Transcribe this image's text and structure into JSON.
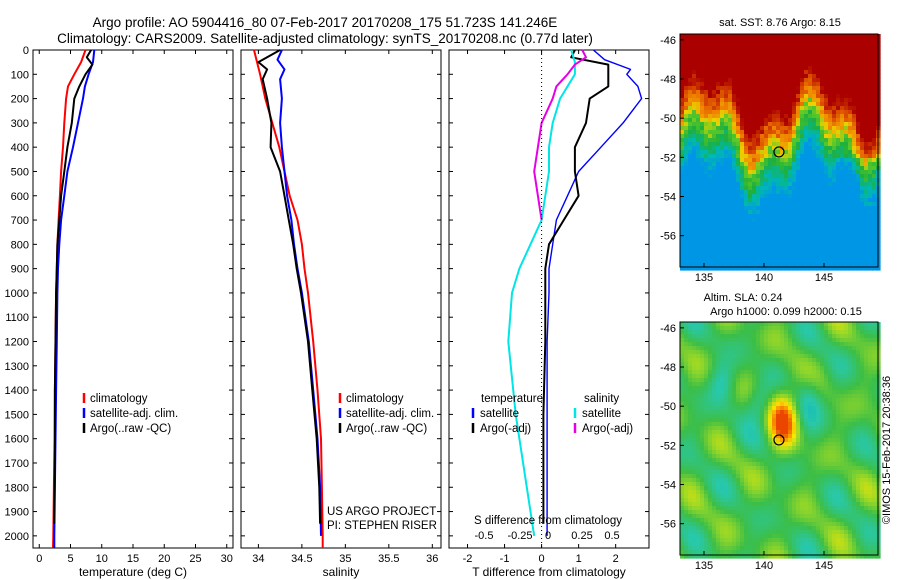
{
  "title_line1": "Argo profile: AO 5904416_80 07-Feb-2017 20170208_175 51.723S 141.246E",
  "title_line2": "Climatology: CARS2009. Satellite-adjusted climatology: synTS_20170208.nc (0.77d later)",
  "colors": {
    "climatology": "#ff0000",
    "satellite": "#0000ff",
    "argo": "#000000",
    "sat_salinity": "#00e5e5",
    "argo_salinity": "#e600e6"
  },
  "chart_data": [
    {
      "type": "line",
      "xlabel": "temperature (deg C)",
      "ylabel": "",
      "xlim": [
        -1,
        31
      ],
      "ylim": [
        2050,
        0
      ],
      "xticks": [
        0,
        5,
        10,
        15,
        20,
        25,
        30
      ],
      "yticks": [
        0,
        100,
        200,
        300,
        400,
        500,
        600,
        700,
        800,
        900,
        1000,
        1100,
        1200,
        1300,
        1400,
        1500,
        1600,
        1700,
        1800,
        1900,
        2000
      ],
      "legend": [
        "climatology",
        "satellite-adj. clim.",
        "Argo(..raw -QC)"
      ],
      "legend_position": "lower-right",
      "series": [
        {
          "name": "climatology",
          "color": "#ff0000",
          "depth": [
            0,
            50,
            100,
            150,
            200,
            300,
            400,
            500,
            600,
            700,
            800,
            900,
            1000,
            1200,
            1400,
            1600,
            1800,
            2000,
            2050
          ],
          "values": [
            7.4,
            6.7,
            5.6,
            4.6,
            4.3,
            4.0,
            3.8,
            3.5,
            3.3,
            3.1,
            2.9,
            2.8,
            2.7,
            2.6,
            2.5,
            2.45,
            2.35,
            2.25,
            2.2
          ]
        },
        {
          "name": "satellite-adj. clim.",
          "color": "#0000ff",
          "depth": [
            0,
            50,
            100,
            150,
            200,
            300,
            400,
            500,
            600,
            700,
            800,
            900,
            1000,
            1200,
            1400,
            1600,
            1800,
            2000,
            2050
          ],
          "values": [
            8.8,
            8.6,
            7.9,
            7.3,
            7.0,
            6.2,
            5.4,
            4.5,
            4.0,
            3.5,
            3.2,
            3.0,
            2.9,
            2.8,
            2.7,
            2.6,
            2.5,
            2.4,
            2.4
          ]
        },
        {
          "name": "Argo(..raw -QC)",
          "color": "#000000",
          "depth": [
            0,
            30,
            60,
            100,
            150,
            200,
            300,
            400,
            500,
            600,
            700,
            800,
            900,
            1000,
            1200,
            1400,
            1600,
            1800,
            1950
          ],
          "values": [
            8.3,
            7.6,
            8.5,
            7.4,
            6.4,
            5.6,
            5.2,
            4.5,
            4.0,
            3.5,
            3.2,
            2.9,
            2.8,
            2.7,
            2.6,
            2.5,
            2.5,
            2.45,
            2.4
          ]
        }
      ]
    },
    {
      "type": "line",
      "xlabel": "salinity",
      "ylabel": "",
      "xlim": [
        33.8,
        36.1
      ],
      "ylim": [
        2050,
        0
      ],
      "xticks": [
        34,
        34.5,
        35,
        35.5,
        36
      ],
      "legend": [
        "climatology",
        "satellite-adj. clim.",
        "Argo(..raw -QC)"
      ],
      "legend_position": "lower-right",
      "annotations": [
        "US ARGO PROJECT",
        "PI: STEPHEN RISER"
      ],
      "series": [
        {
          "name": "climatology",
          "color": "#ff0000",
          "depth": [
            0,
            100,
            200,
            300,
            400,
            500,
            600,
            700,
            800,
            900,
            1000,
            1200,
            1400,
            1600,
            1800,
            2000,
            2050
          ],
          "values": [
            33.95,
            34.02,
            34.08,
            34.16,
            34.24,
            34.3,
            34.36,
            34.45,
            34.5,
            34.53,
            34.57,
            34.63,
            34.68,
            34.72,
            34.73,
            34.74,
            34.74
          ]
        },
        {
          "name": "satellite-adj. clim.",
          "color": "#0000ff",
          "depth": [
            0,
            40,
            80,
            120,
            200,
            300,
            400,
            500,
            600,
            700,
            800,
            900,
            1000,
            1200,
            1400,
            1600,
            1800,
            2000
          ],
          "values": [
            34.27,
            34.22,
            34.3,
            34.25,
            34.27,
            34.25,
            34.27,
            34.3,
            34.33,
            34.38,
            34.41,
            34.45,
            34.5,
            34.58,
            34.63,
            34.68,
            34.71,
            34.72
          ]
        },
        {
          "name": "Argo(..raw -QC)",
          "color": "#000000",
          "depth": [
            0,
            50,
            80,
            120,
            200,
            300,
            400,
            500,
            600,
            700,
            800,
            900,
            1000,
            1200,
            1400,
            1600,
            1800,
            1950
          ],
          "values": [
            34.25,
            34.0,
            34.1,
            34.05,
            34.1,
            34.15,
            34.14,
            34.25,
            34.3,
            34.35,
            34.4,
            34.44,
            34.49,
            34.57,
            34.62,
            34.67,
            34.7,
            34.71
          ]
        }
      ]
    },
    {
      "type": "line",
      "xlabel": "T difference from climatology",
      "xlabel_top": "S difference from climatology",
      "xlim": [
        -2.5,
        2.9
      ],
      "ylim": [
        2050,
        0
      ],
      "xticks": [
        -2,
        -1,
        0,
        1,
        2
      ],
      "xticks_top": [
        "-0.5",
        "-0.25",
        "0",
        "0.25",
        "0.5"
      ],
      "legend_groups": [
        {
          "title": "temperature",
          "entries": [
            "satellite",
            "Argo(-adj)"
          ]
        },
        {
          "title": "salinity",
          "entries": [
            "satellite",
            "Argo(-adj)"
          ]
        }
      ],
      "series": [
        {
          "name": "temperature satellite",
          "color": "#0000ff",
          "depth": [
            0,
            40,
            80,
            100,
            150,
            200,
            300,
            400,
            500,
            600,
            700,
            800,
            900,
            1000,
            1200,
            1500,
            1800,
            2000
          ],
          "values": [
            1.4,
            1.7,
            2.4,
            2.3,
            2.6,
            2.7,
            2.2,
            1.6,
            1.0,
            0.7,
            0.4,
            0.3,
            0.2,
            0.2,
            0.15,
            0.15,
            0.15,
            0.15
          ]
        },
        {
          "name": "temperature Argo(-adj)",
          "color": "#000000",
          "depth": [
            0,
            30,
            60,
            100,
            150,
            200,
            300,
            400,
            500,
            600,
            700,
            800,
            900,
            1000,
            1200,
            1500,
            1800,
            1950
          ],
          "values": [
            0.9,
            0.8,
            1.8,
            1.8,
            1.8,
            1.3,
            1.2,
            0.9,
            0.9,
            1.0,
            0.6,
            0.2,
            0.1,
            0.1,
            0.1,
            0.05,
            0.05,
            0.05
          ]
        },
        {
          "name": "salinity satellite",
          "color": "#00e5e5",
          "depth": [
            0,
            50,
            100,
            200,
            300,
            400,
            500,
            600,
            700,
            800,
            900,
            1000,
            1200,
            1500,
            1800,
            2000
          ],
          "values": [
            0.8,
            0.9,
            0.9,
            0.5,
            0.3,
            0.2,
            0.2,
            0.1,
            0.0,
            -0.3,
            -0.6,
            -0.8,
            -0.9,
            -0.7,
            -0.4,
            -0.2
          ]
        },
        {
          "name": "salinity Argo(-adj)",
          "color": "#e600e6",
          "depth": [
            0,
            30,
            60,
            100,
            150,
            200,
            300,
            400,
            500,
            600,
            700
          ],
          "values": [
            1.1,
            1.2,
            0.9,
            0.7,
            0.4,
            0.3,
            0.0,
            -0.1,
            -0.2,
            -0.1,
            0.0
          ]
        }
      ]
    },
    {
      "type": "heatmap",
      "title": "sat. SST: 8.76 Argo: 8.15",
      "xlim": [
        133,
        149.5
      ],
      "ylim": [
        -57.6,
        -45.7
      ],
      "xticks": [
        135,
        140,
        145
      ],
      "yticks": [
        -46,
        -48,
        -50,
        -52,
        -54,
        -56
      ],
      "marker": {
        "lon": 141.246,
        "lat": -51.723
      }
    },
    {
      "type": "heatmap",
      "title_line1": "Altim. SLA: 0.24",
      "title_line2": "Argo h1000: 0.099 h2000: 0.15",
      "xlim": [
        133,
        149.5
      ],
      "ylim": [
        -57.6,
        -45.7
      ],
      "xticks": [
        135,
        140,
        145
      ],
      "yticks": [
        -46,
        -48,
        -50,
        -52,
        -54,
        -56
      ],
      "marker": {
        "lon": 141.246,
        "lat": -51.723
      }
    }
  ],
  "side_label": "©IMOS 15-Feb-2017 20:38:36"
}
